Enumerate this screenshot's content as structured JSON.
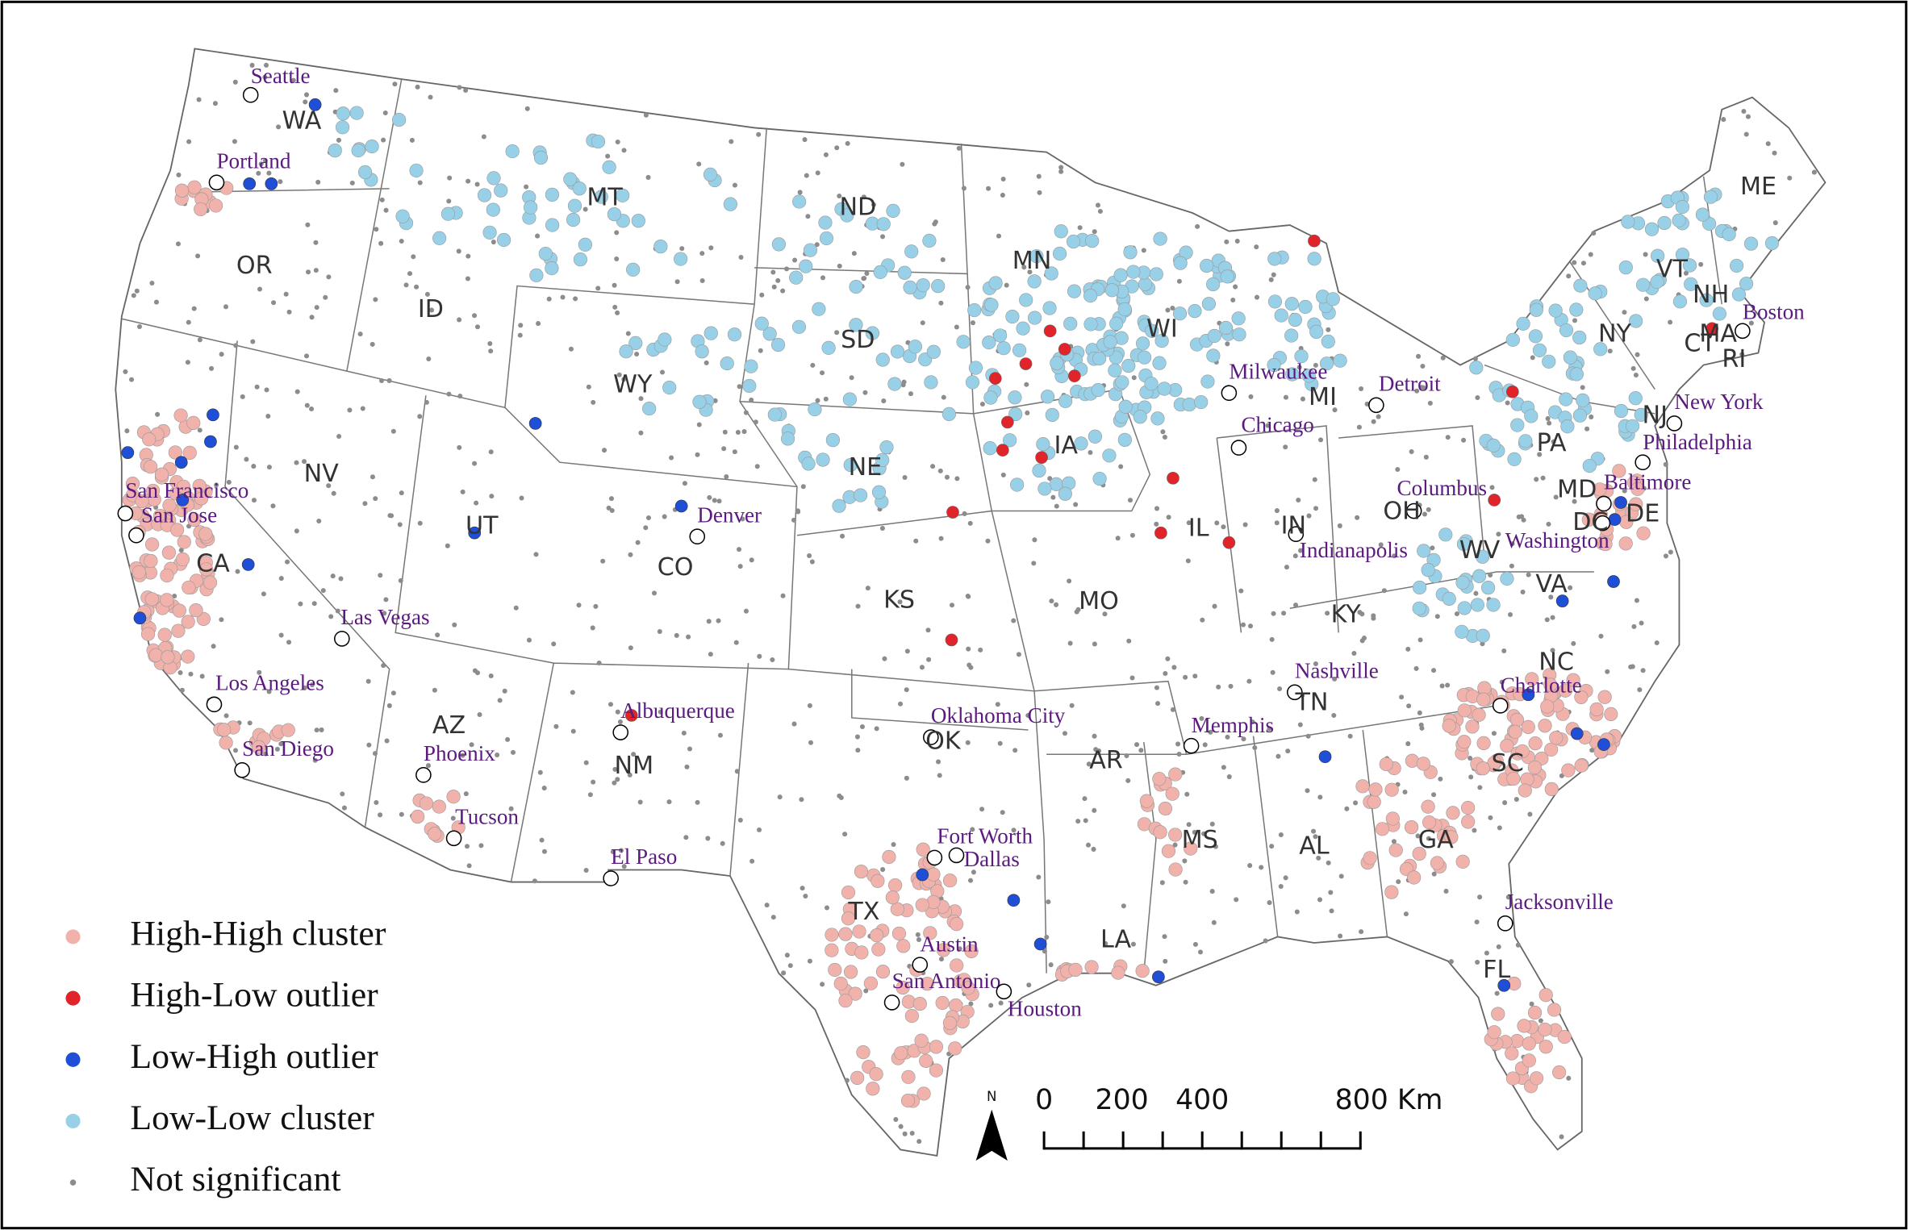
{
  "legend": {
    "items": [
      {
        "label": "High-High cluster",
        "color": "#f0b2ab"
      },
      {
        "label": "High-Low outlier",
        "color": "#e0242a"
      },
      {
        "label": "Low-High outlier",
        "color": "#1f4fd6"
      },
      {
        "label": "Low-Low cluster",
        "color": "#98d0e8"
      },
      {
        "label": "Not significant",
        "color": "#8c8c8c"
      }
    ]
  },
  "states": [
    "WA",
    "OR",
    "CA",
    "NV",
    "ID",
    "MT",
    "WY",
    "UT",
    "AZ",
    "CO",
    "NM",
    "ND",
    "SD",
    "NE",
    "KS",
    "OK",
    "TX",
    "MN",
    "IA",
    "MO",
    "AR",
    "LA",
    "WI",
    "IL",
    "MI",
    "IN",
    "OH",
    "KY",
    "TN",
    "MS",
    "AL",
    "GA",
    "FL",
    "SC",
    "NC",
    "VA",
    "WV",
    "PA",
    "NY",
    "VT",
    "NH",
    "ME",
    "MA",
    "RI",
    "CT",
    "NJ",
    "DE",
    "MD",
    "DC"
  ],
  "cities": [
    "Seattle",
    "Portland",
    "San Francisco",
    "San Jose",
    "Los Angeles",
    "San Diego",
    "Las Vegas",
    "Phoenix",
    "Tucson",
    "Albuquerque",
    "El Paso",
    "Denver",
    "Oklahoma City",
    "Fort Worth",
    "Dallas",
    "Austin",
    "San Antonio",
    "Houston",
    "Memphis",
    "Nashville",
    "Chicago",
    "Milwaukee",
    "Detroit",
    "Indianapolis",
    "Columbus",
    "Washington",
    "Baltimore",
    "Philadelphia",
    "New York",
    "Boston",
    "Charlotte",
    "Jacksonville"
  ],
  "scale_bar": {
    "labels": [
      "0",
      "200",
      "400",
      "800 Km"
    ]
  },
  "north_arrow": "N"
}
